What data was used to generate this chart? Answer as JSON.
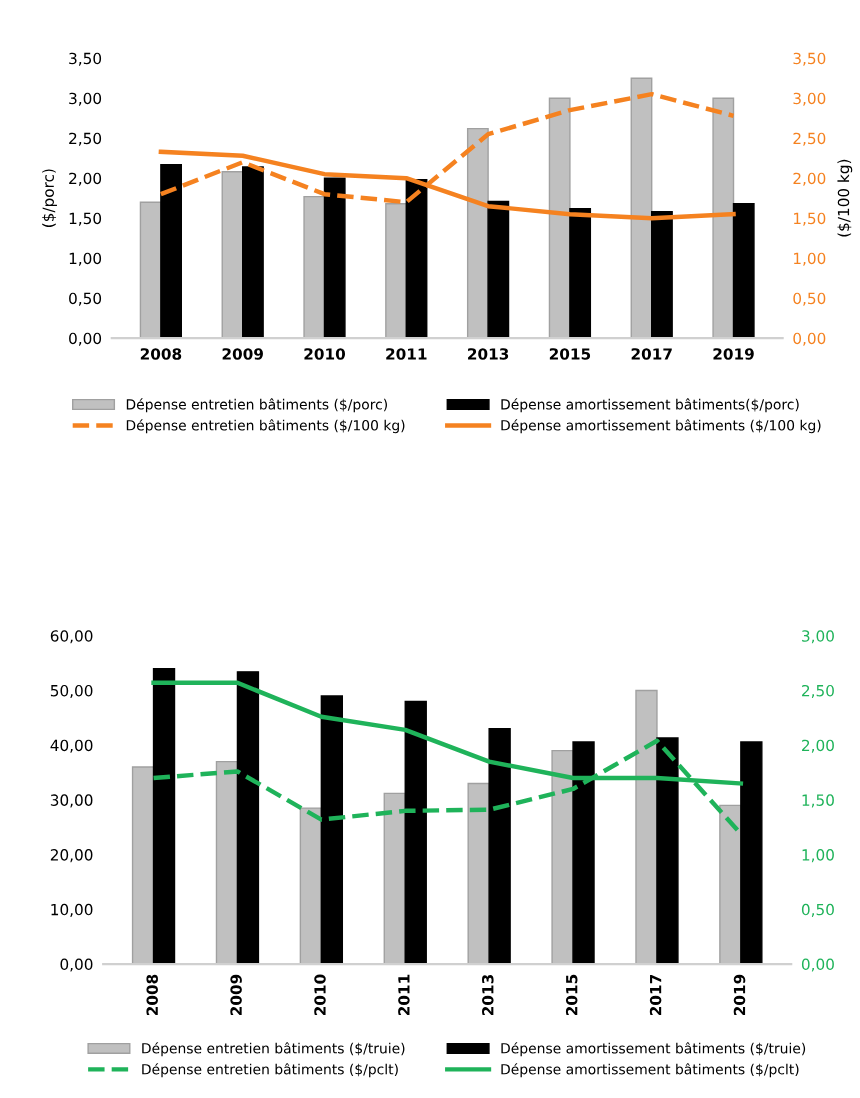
{
  "chart_data": [
    {
      "type": "bar",
      "categories": [
        "2008",
        "2009",
        "2010",
        "2011",
        "2013",
        "2015",
        "2017",
        "2019"
      ],
      "ylabel": "($/porc)",
      "y2label": "($/100 kg)",
      "ylim": [
        0,
        3.5
      ],
      "yticks": [
        {
          "value": 0,
          "label": "0,00"
        },
        {
          "value": 0.5,
          "label": "0,50"
        },
        {
          "value": 1,
          "label": "1,00"
        },
        {
          "value": 1.5,
          "label": "1,50"
        },
        {
          "value": 2,
          "label": "2,00"
        },
        {
          "value": 2.5,
          "label": "2,50"
        },
        {
          "value": 3,
          "label": "3,00"
        },
        {
          "value": 3.5,
          "label": "3,50"
        }
      ],
      "y2lim": [
        0,
        3.5
      ],
      "y2ticks": [
        {
          "value": 0,
          "label": "0,00"
        },
        {
          "value": 0.5,
          "label": "0,50"
        },
        {
          "value": 1,
          "label": "1,00"
        },
        {
          "value": 1.5,
          "label": "1,50"
        },
        {
          "value": 2,
          "label": "2,00"
        },
        {
          "value": 2.5,
          "label": "2,50"
        },
        {
          "value": 3,
          "label": "3,00"
        },
        {
          "value": 3.5,
          "label": "3,50"
        }
      ],
      "legend": "bottom",
      "grid": false,
      "series": [
        {
          "name": "Dépense entretien bâtiments ($/porc)",
          "type": "bar",
          "color": "#c0c0c0",
          "values": [
            1.7,
            2.08,
            1.77,
            1.68,
            2.62,
            3.0,
            3.25,
            3.0
          ]
        },
        {
          "name": "Dépense amortissement bâtiments($/porc)",
          "type": "bar",
          "color": "#000000",
          "values": [
            2.17,
            2.14,
            2.0,
            1.98,
            1.71,
            1.62,
            1.58,
            1.68
          ]
        },
        {
          "name": "Dépense entretien bâtiments ($/100 kg)",
          "type": "line",
          "axis": "y2",
          "line_style": "dashed",
          "color": "#f58220",
          "values": [
            1.8,
            2.2,
            1.8,
            1.7,
            2.55,
            2.85,
            3.05,
            2.78
          ]
        },
        {
          "name": "Dépense amortissement bâtiments ($/100 kg)",
          "type": "line",
          "axis": "y2",
          "line_style": "solid",
          "color": "#f58220",
          "values": [
            2.33,
            2.28,
            2.05,
            2.0,
            1.65,
            1.55,
            1.5,
            1.55
          ]
        }
      ]
    },
    {
      "type": "bar",
      "categories": [
        "2008",
        "2009",
        "2010",
        "2011",
        "2013",
        "2015",
        "2017",
        "2019"
      ],
      "ylim": [
        0,
        60
      ],
      "yticks": [
        {
          "value": 0,
          "label": "0,00"
        },
        {
          "value": 10,
          "label": "10,00"
        },
        {
          "value": 20,
          "label": "20,00"
        },
        {
          "value": 30,
          "label": "30,00"
        },
        {
          "value": 40,
          "label": "40,00"
        },
        {
          "value": 50,
          "label": "50,00"
        },
        {
          "value": 60,
          "label": "60,00"
        }
      ],
      "y2lim": [
        0,
        3
      ],
      "y2ticks": [
        {
          "value": 0,
          "label": "0,00"
        },
        {
          "value": 0.5,
          "label": "0,50"
        },
        {
          "value": 1,
          "label": "1,00"
        },
        {
          "value": 1.5,
          "label": "1,50"
        },
        {
          "value": 2,
          "label": "2,00"
        },
        {
          "value": 2.5,
          "label": "2,50"
        },
        {
          "value": 3,
          "label": "3,00"
        }
      ],
      "legend": "bottom",
      "grid": false,
      "series": [
        {
          "name": "Dépense entretien bâtiments ($/truie)",
          "type": "bar",
          "color": "#c0c0c0",
          "values": [
            36,
            37,
            28.5,
            31.2,
            33,
            39,
            50,
            29
          ]
        },
        {
          "name": "Dépense amortissement bâtiments ($/truie)",
          "type": "bar",
          "color": "#000000",
          "values": [
            54,
            53.4,
            49,
            48,
            43,
            40.6,
            41.3,
            40.6
          ]
        },
        {
          "name": "Dépense entretien bâtiments ($/pclt)",
          "type": "line",
          "axis": "y2",
          "line_style": "dashed",
          "color": "#1fb35a",
          "values": [
            1.7,
            1.76,
            1.32,
            1.4,
            1.41,
            1.6,
            2.04,
            1.19
          ]
        },
        {
          "name": "Dépense amortissement bâtiments ($/pclt)",
          "type": "line",
          "axis": "y2",
          "line_style": "solid",
          "color": "#1fb35a",
          "values": [
            2.57,
            2.57,
            2.26,
            2.14,
            1.85,
            1.7,
            1.7,
            1.65
          ]
        }
      ]
    }
  ]
}
